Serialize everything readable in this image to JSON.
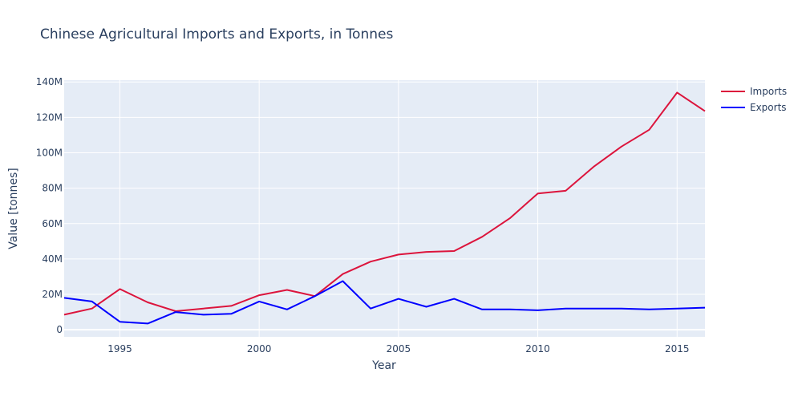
{
  "chart_data": {
    "type": "line",
    "title": "Chinese Agricultural Imports and Exports, in Tonnes",
    "xlabel": "Year",
    "ylabel": "Value [tonnes]",
    "xlim": [
      1993,
      2016
    ],
    "ylim": [
      -4000000,
      141000000
    ],
    "x_ticks": [
      1995,
      2000,
      2005,
      2010,
      2015
    ],
    "y_ticks": [
      0,
      20000000,
      40000000,
      60000000,
      80000000,
      100000000,
      120000000,
      140000000
    ],
    "y_tick_labels": [
      "0",
      "20M",
      "40M",
      "60M",
      "80M",
      "100M",
      "120M",
      "140M"
    ],
    "grid": true,
    "legend_position": "top-right",
    "x": [
      1993,
      1994,
      1995,
      1996,
      1997,
      1998,
      1999,
      2000,
      2001,
      2002,
      2003,
      2004,
      2005,
      2006,
      2007,
      2008,
      2009,
      2010,
      2011,
      2012,
      2013,
      2014,
      2015,
      2016
    ],
    "series": [
      {
        "name": "Imports",
        "color": "#dc143c",
        "values": [
          8500000,
          12000000,
          23000000,
          15500000,
          10500000,
          12000000,
          13500000,
          19500000,
          22500000,
          19000000,
          31500000,
          38500000,
          42500000,
          44000000,
          44500000,
          52500000,
          63000000,
          77000000,
          78500000,
          92000000,
          103500000,
          113000000,
          134000000,
          123500000
        ]
      },
      {
        "name": "Exports",
        "color": "#0000ff",
        "values": [
          18000000,
          16000000,
          4500000,
          3500000,
          10000000,
          8500000,
          9000000,
          16000000,
          11500000,
          19000000,
          27500000,
          12000000,
          17500000,
          13000000,
          17500000,
          11500000,
          11500000,
          11000000,
          12000000,
          12000000,
          12000000,
          11500000,
          12000000,
          12500000
        ]
      }
    ]
  }
}
